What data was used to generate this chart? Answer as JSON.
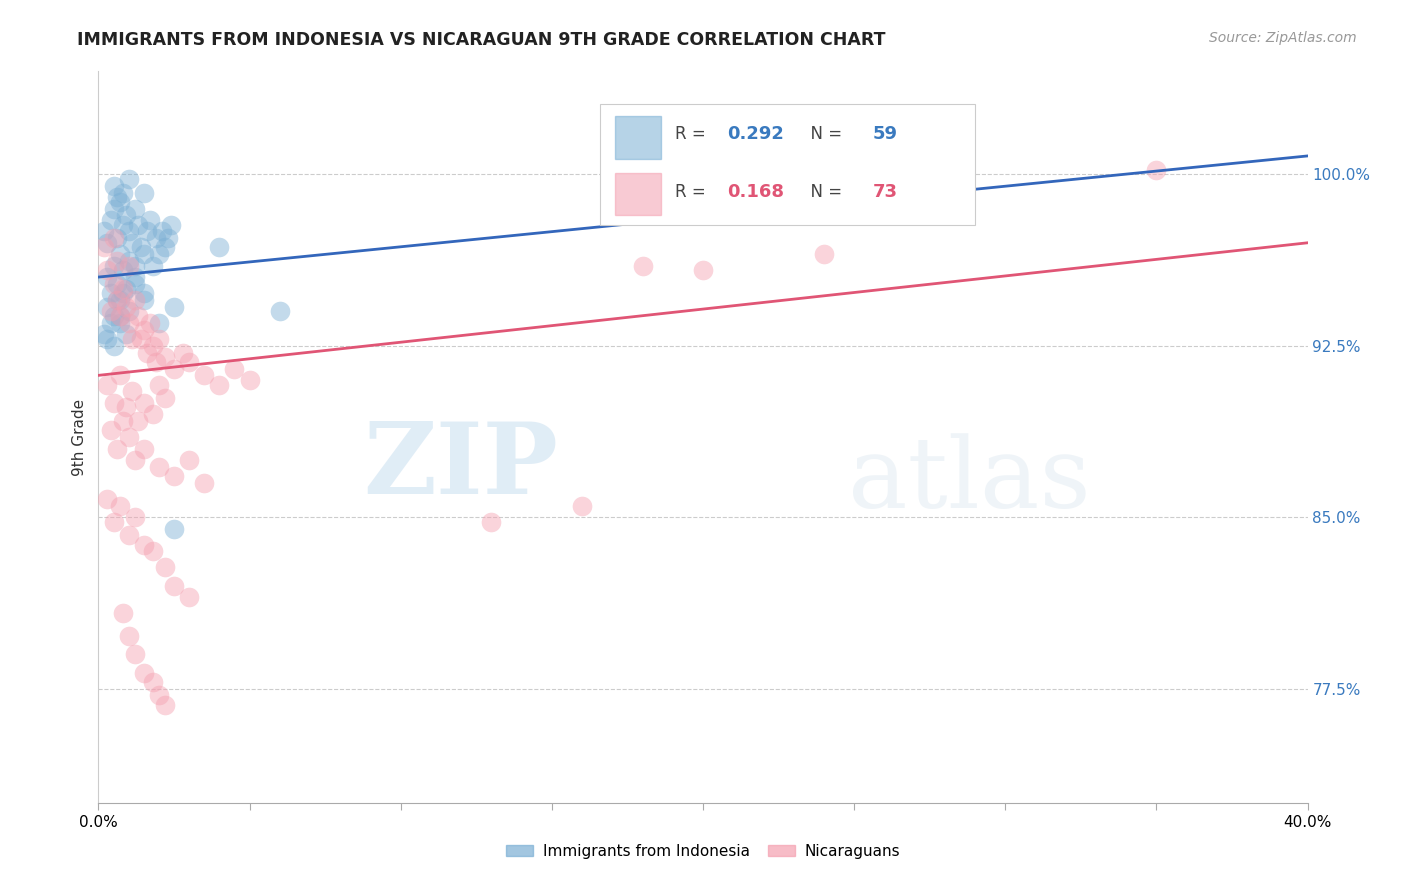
{
  "title": "IMMIGRANTS FROM INDONESIA VS NICARAGUAN 9TH GRADE CORRELATION CHART",
  "source": "Source: ZipAtlas.com",
  "ylabel_ticks": [
    0.775,
    0.85,
    0.925,
    1.0
  ],
  "ylabel_labels": [
    "77.5%",
    "85.0%",
    "92.5%",
    "100.0%"
  ],
  "ylabel_axis_label": "9th Grade",
  "xmin": 0.0,
  "xmax": 0.4,
  "ymin": 0.725,
  "ymax": 1.045,
  "blue_R": 0.292,
  "blue_N": 59,
  "pink_R": 0.168,
  "pink_N": 73,
  "legend_label_blue": "Immigrants from Indonesia",
  "legend_label_pink": "Nicaraguans",
  "blue_color": "#7BAFD4",
  "pink_color": "#F4A0B0",
  "blue_line_color": "#3366BB",
  "pink_line_color": "#E05575",
  "watermark_zip": "ZIP",
  "watermark_atlas": "atlas",
  "blue_x": [
    0.002,
    0.003,
    0.004,
    0.005,
    0.005,
    0.006,
    0.006,
    0.007,
    0.007,
    0.008,
    0.008,
    0.009,
    0.01,
    0.01,
    0.011,
    0.012,
    0.012,
    0.013,
    0.014,
    0.015,
    0.015,
    0.016,
    0.017,
    0.018,
    0.019,
    0.02,
    0.021,
    0.022,
    0.023,
    0.024,
    0.003,
    0.004,
    0.005,
    0.006,
    0.007,
    0.008,
    0.009,
    0.01,
    0.012,
    0.015,
    0.003,
    0.005,
    0.006,
    0.007,
    0.008,
    0.01,
    0.012,
    0.015,
    0.02,
    0.025,
    0.002,
    0.003,
    0.004,
    0.005,
    0.007,
    0.009,
    0.025,
    0.04,
    0.06
  ],
  "blue_y": [
    0.975,
    0.97,
    0.98,
    0.995,
    0.985,
    0.99,
    0.972,
    0.988,
    0.965,
    0.992,
    0.978,
    0.982,
    0.975,
    0.998,
    0.97,
    0.985,
    0.96,
    0.978,
    0.968,
    0.992,
    0.965,
    0.975,
    0.98,
    0.96,
    0.972,
    0.965,
    0.975,
    0.968,
    0.972,
    0.978,
    0.955,
    0.948,
    0.96,
    0.952,
    0.945,
    0.958,
    0.95,
    0.962,
    0.955,
    0.948,
    0.942,
    0.938,
    0.945,
    0.935,
    0.948,
    0.94,
    0.952,
    0.945,
    0.935,
    0.942,
    0.93,
    0.928,
    0.935,
    0.925,
    0.938,
    0.93,
    0.845,
    0.968,
    0.94
  ],
  "pink_x": [
    0.002,
    0.003,
    0.004,
    0.005,
    0.005,
    0.006,
    0.006,
    0.007,
    0.008,
    0.009,
    0.01,
    0.01,
    0.011,
    0.012,
    0.013,
    0.014,
    0.015,
    0.016,
    0.017,
    0.018,
    0.019,
    0.02,
    0.022,
    0.025,
    0.028,
    0.03,
    0.035,
    0.04,
    0.045,
    0.05,
    0.003,
    0.005,
    0.007,
    0.009,
    0.011,
    0.013,
    0.015,
    0.018,
    0.02,
    0.022,
    0.004,
    0.006,
    0.008,
    0.01,
    0.012,
    0.015,
    0.02,
    0.025,
    0.03,
    0.035,
    0.003,
    0.005,
    0.007,
    0.01,
    0.012,
    0.015,
    0.018,
    0.022,
    0.025,
    0.03,
    0.008,
    0.01,
    0.012,
    0.015,
    0.018,
    0.02,
    0.022,
    0.18,
    0.2,
    0.24,
    0.16,
    0.13,
    0.35
  ],
  "pink_y": [
    0.968,
    0.958,
    0.94,
    0.972,
    0.952,
    0.945,
    0.962,
    0.938,
    0.95,
    0.942,
    0.935,
    0.96,
    0.928,
    0.945,
    0.938,
    0.928,
    0.932,
    0.922,
    0.935,
    0.925,
    0.918,
    0.928,
    0.92,
    0.915,
    0.922,
    0.918,
    0.912,
    0.908,
    0.915,
    0.91,
    0.908,
    0.9,
    0.912,
    0.898,
    0.905,
    0.892,
    0.9,
    0.895,
    0.908,
    0.902,
    0.888,
    0.88,
    0.892,
    0.885,
    0.875,
    0.88,
    0.872,
    0.868,
    0.875,
    0.865,
    0.858,
    0.848,
    0.855,
    0.842,
    0.85,
    0.838,
    0.835,
    0.828,
    0.82,
    0.815,
    0.808,
    0.798,
    0.79,
    0.782,
    0.778,
    0.772,
    0.768,
    0.96,
    0.958,
    0.965,
    0.855,
    0.848,
    1.002
  ]
}
